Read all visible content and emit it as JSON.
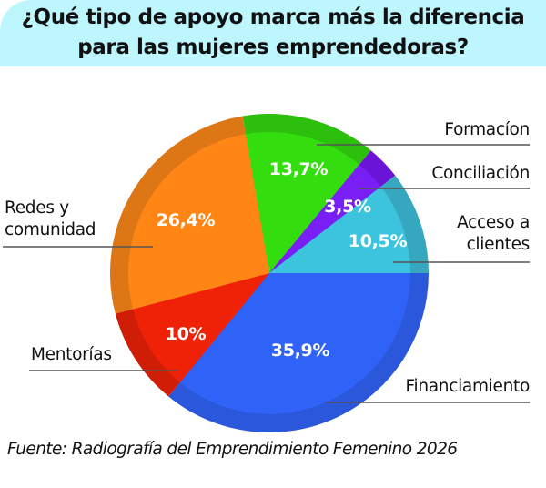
{
  "header": {
    "title_line1": "¿Qué tipo de apoyo marca más la diferencia",
    "title_line2": "para las mujeres emprendedoras?",
    "background": "#bdf6fd"
  },
  "labels": {
    "formacion": "Formacíon",
    "conciliacion": "Conciliación",
    "acceso_line1": "Acceso a",
    "acceso_line2": "clientes",
    "financiamiento": "Financiamiento",
    "mentorias": "Mentorías",
    "redes_line1": "Redes y",
    "redes_line2": "comunidad"
  },
  "source": "Fuente: Radiografía del Emprendimiento Femenino 2026",
  "chart_data": {
    "type": "pie",
    "title": "¿Qué tipo de apoyo marca más la diferencia para las mujeres emprendedoras?",
    "start_angle_deg": -9.7,
    "direction": "clockwise",
    "categories": [
      "Formacíon",
      "Conciliación",
      "Acceso a clientes",
      "Financiamiento",
      "Mentorías",
      "Redes y comunidad"
    ],
    "values": [
      13.7,
      3.5,
      10.5,
      35.9,
      10.0,
      26.4
    ],
    "value_labels": [
      "13,7%",
      "3,5%",
      "10,5%",
      "35,9%",
      "10%",
      "26,4%"
    ],
    "colors": [
      "#33dd0e",
      "#7a1ef6",
      "#3cc4de",
      "#2f62f6",
      "#ef2208",
      "#ff8614"
    ],
    "ring_colors": [
      "#2cbf0c",
      "#6a14d8",
      "#36a7bf",
      "#2b57db",
      "#cf1d06",
      "#dd7715"
    ],
    "unit": "%",
    "source": "Fuente: Radiografía del Emprendimiento Femenino 2026"
  }
}
